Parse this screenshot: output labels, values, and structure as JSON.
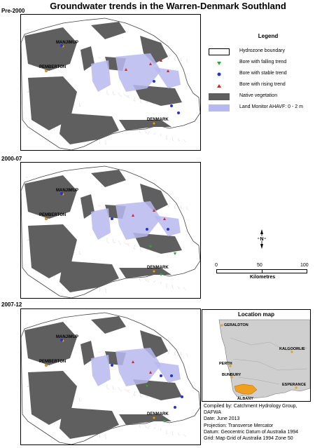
{
  "title": "Groundwater trends in the Warren-Denmark Southland",
  "panels": [
    {
      "label": "Pre-2000",
      "top": 29
    },
    {
      "label": "2000-07",
      "top": 228
    },
    {
      "label": "2007-12",
      "top": 436
    }
  ],
  "towns": [
    "MANJIMUP",
    "PEMBERTON",
    "DENMARK"
  ],
  "legend": {
    "title": "Legend",
    "items": [
      {
        "label": "Hydrozone boundary",
        "symbol": "box-outline"
      },
      {
        "label": "Bore with falling trend",
        "symbol": "green-triangle-down"
      },
      {
        "label": "Bore with stable trend",
        "symbol": "blue-dot"
      },
      {
        "label": "Bore with rising trend",
        "symbol": "red-triangle-up"
      },
      {
        "label": "Native vegetation",
        "symbol": "dark-grey-fill"
      },
      {
        "label": "Land Monitor AHAVF: 0 - 2 m",
        "symbol": "lavender-fill"
      }
    ]
  },
  "north_arrow": {
    "label": "N"
  },
  "scale_bar": {
    "ticks": [
      "0",
      "50",
      "100"
    ],
    "unit": "Kilometres"
  },
  "location_map": {
    "title": "Location map",
    "places": [
      "GERALDTON",
      "KALGOORLIE",
      "PERTH",
      "BUNBURY",
      "ESPERANCE",
      "ALBANY"
    ]
  },
  "credits": [
    "Compiled by:  Catchment Hydrology Group,",
    "DAFWA",
    "Date:  June 2013",
    "Projection:  Transverse Mercator",
    "Datum:  Geocentric Datum of Australia 1994",
    "Grid:  Map Grid of Australia 1994 Zone 50"
  ],
  "colors": {
    "vegetation": "#5f5f5f",
    "land_monitor": "#b8b8f0",
    "falling": "#22aa33",
    "stable": "#2233dd",
    "rising": "#dd2222",
    "town": "#e8a020",
    "study_area": "#f0a020",
    "state_fill": "#cfcfcf"
  }
}
